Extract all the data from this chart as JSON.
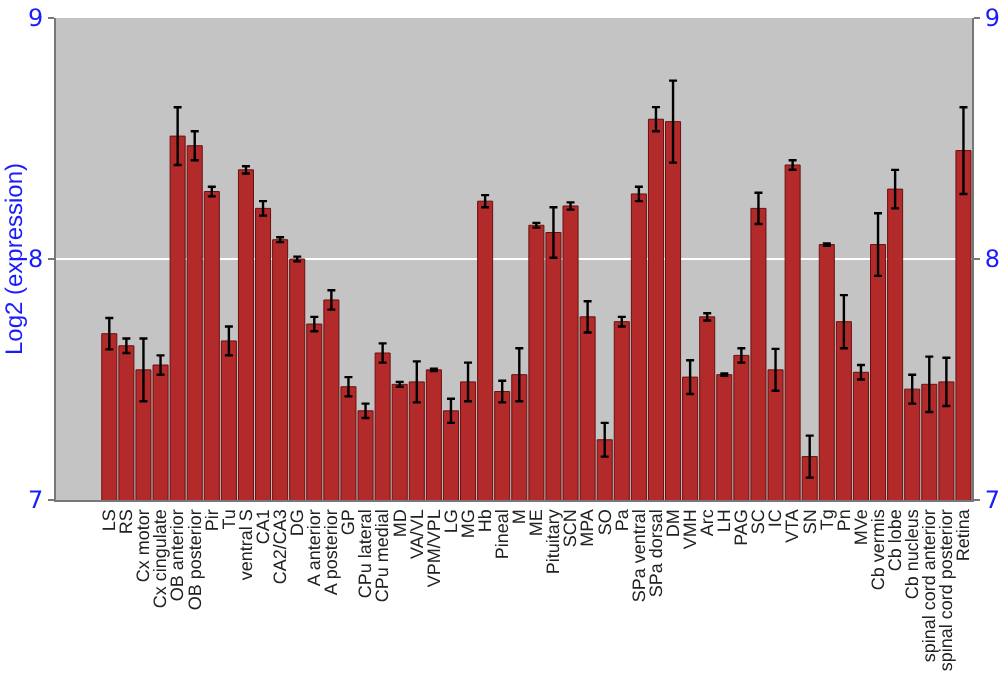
{
  "chart_data": {
    "type": "bar",
    "ylabel": "Log2 (expression)",
    "categories": [
      "LS",
      "RS",
      "Cx motor",
      "Cx cingulate",
      "OB anterior",
      "OB posterior",
      "Pir",
      "Tu",
      "ventral S",
      "CA1",
      "CA2/CA3",
      "DG",
      "A anterior",
      "A posterior",
      "GP",
      "CPu lateral",
      "CPu medial",
      "MD",
      "VA/VL",
      "VPM/VPL",
      "LG",
      "MG",
      "Hb",
      "Pineal",
      "M",
      "ME",
      "Pituitary",
      "SCN",
      "MPA",
      "SO",
      "Pa",
      "SPa ventral",
      "SPa dorsal",
      "DM",
      "VMH",
      "Arc",
      "LH",
      "PAG",
      "SC",
      "IC",
      "VTA",
      "SN",
      "Tg",
      "Pn",
      "MVe",
      "Cb vermis",
      "Cb lobe",
      "Cb nucleus",
      "spinal cord anterior",
      "spinal cord posterior",
      "Retina"
    ],
    "values": [
      7.69,
      7.64,
      7.54,
      7.56,
      8.51,
      8.47,
      8.28,
      7.66,
      8.37,
      8.21,
      8.08,
      8.0,
      7.73,
      7.83,
      7.47,
      7.37,
      7.61,
      7.48,
      7.49,
      7.54,
      7.37,
      7.49,
      8.24,
      7.45,
      7.52,
      8.14,
      8.11,
      8.22,
      7.76,
      7.25,
      7.74,
      8.27,
      8.58,
      8.57,
      7.51,
      7.76,
      7.52,
      7.6,
      8.21,
      7.54,
      8.39,
      7.18,
      8.06,
      7.74,
      7.53,
      8.06,
      8.29,
      7.46,
      7.48,
      7.49,
      8.45
    ],
    "errors": [
      0.065,
      0.03,
      0.13,
      0.04,
      0.12,
      0.06,
      0.02,
      0.06,
      0.015,
      0.03,
      0.01,
      0.01,
      0.03,
      0.04,
      0.04,
      0.03,
      0.04,
      0.01,
      0.085,
      0.005,
      0.05,
      0.08,
      0.025,
      0.045,
      0.11,
      0.01,
      0.105,
      0.015,
      0.065,
      0.07,
      0.02,
      0.03,
      0.05,
      0.17,
      0.07,
      0.015,
      0.005,
      0.03,
      0.065,
      0.087,
      0.02,
      0.087,
      0.005,
      0.11,
      0.03,
      0.13,
      0.08,
      0.06,
      0.115,
      0.1,
      0.18
    ],
    "color": "#b22a2a",
    "ylim": [
      7,
      9
    ],
    "yticks": [
      7,
      8,
      9
    ],
    "y2lim": [
      7,
      9
    ],
    "y2ticks": [
      7,
      8,
      9
    ],
    "grid": "y"
  }
}
